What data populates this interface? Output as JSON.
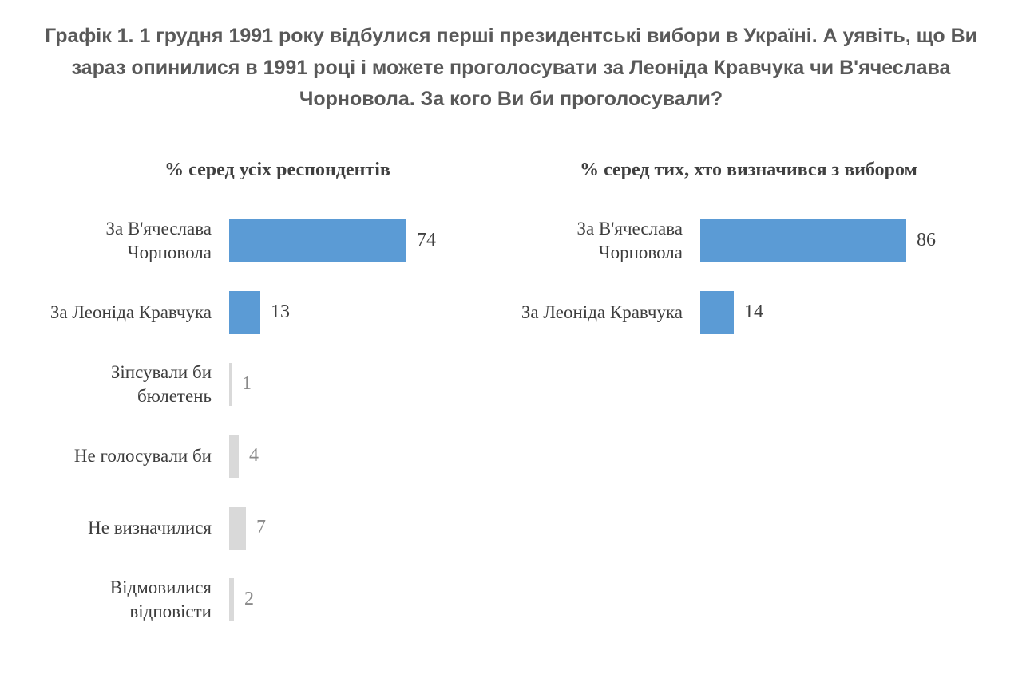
{
  "header": {
    "title": "Графік 1. 1 грудня 1991 року відбулися перші президентські вибори в Україні. А уявіть, що Ви зараз опинилися в 1991 році і можете проголосувати за Леоніда Кравчука чи В'ячеслава Чорновола. За кого Ви би проголосували?"
  },
  "colors": {
    "accent_blue": "#5B9BD5",
    "neutral_gray": "#D9D9D9",
    "title_gray": "#595959",
    "value_dark": "#404040",
    "value_gray": "#8a8a8a"
  },
  "chart_data": [
    {
      "type": "bar",
      "orientation": "horizontal",
      "title": "% серед усіх респондентів",
      "categories": [
        "За В'ячеслава Чорновола",
        "За Леоніда Кравчука",
        "Зіпсували би бюлетень",
        "Не голосували би",
        "Не визначилися",
        "Відмовилися відповісти"
      ],
      "values": [
        74,
        13,
        1,
        4,
        7,
        2
      ],
      "bar_colors": [
        "#5B9BD5",
        "#5B9BD5",
        "#D9D9D9",
        "#D9D9D9",
        "#D9D9D9",
        "#D9D9D9"
      ],
      "value_label_colors": [
        "#404040",
        "#404040",
        "#8a8a8a",
        "#8a8a8a",
        "#8a8a8a",
        "#8a8a8a"
      ],
      "xlim": [
        0,
        100
      ],
      "grid": false,
      "legend": "none"
    },
    {
      "type": "bar",
      "orientation": "horizontal",
      "title": "% серед тих, хто визначився з вибором",
      "categories": [
        "За В'ячеслава Чорновола",
        "За Леоніда Кравчука"
      ],
      "values": [
        86,
        14
      ],
      "bar_colors": [
        "#5B9BD5",
        "#5B9BD5"
      ],
      "value_label_colors": [
        "#404040",
        "#404040"
      ],
      "xlim": [
        0,
        100
      ],
      "grid": false,
      "legend": "none"
    }
  ]
}
